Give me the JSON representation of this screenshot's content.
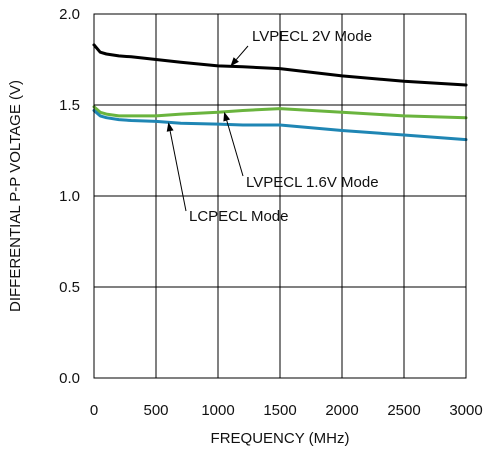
{
  "chart_data": {
    "type": "line",
    "xlabel": "FREQUENCY (MHz)",
    "ylabel": "DIFFERENTIAL P-P VOLTAGE (V)",
    "xlim": [
      0,
      3000
    ],
    "ylim": [
      0.0,
      2.0
    ],
    "x_ticks": [
      0,
      500,
      1000,
      1500,
      2000,
      2500,
      3000
    ],
    "x_tick_labels": [
      "0",
      "500",
      "1000",
      "1500",
      "2000",
      "2500",
      "3000"
    ],
    "y_ticks": [
      0.0,
      0.5,
      1.0,
      1.5,
      2.0
    ],
    "y_tick_labels": [
      "0.0",
      "0.5",
      "1.0",
      "1.5",
      "2.0"
    ],
    "grid": true,
    "series": [
      {
        "name": "LVPECL 2V Mode",
        "color": "#000000",
        "x": [
          0,
          50,
          100,
          200,
          300,
          500,
          700,
          1000,
          1200,
          1500,
          2000,
          2500,
          3000
        ],
        "y": [
          1.83,
          1.79,
          1.78,
          1.77,
          1.765,
          1.75,
          1.735,
          1.715,
          1.71,
          1.7,
          1.66,
          1.63,
          1.61
        ]
      },
      {
        "name": "LVPECL 1.6V Mode",
        "color": "#6ab43e",
        "x": [
          0,
          50,
          100,
          200,
          300,
          500,
          700,
          1000,
          1200,
          1500,
          2000,
          2500,
          3000
        ],
        "y": [
          1.49,
          1.46,
          1.45,
          1.44,
          1.44,
          1.44,
          1.45,
          1.46,
          1.47,
          1.48,
          1.46,
          1.44,
          1.43
        ]
      },
      {
        "name": "LCPECL Mode",
        "color": "#1f86b4",
        "x": [
          0,
          50,
          100,
          200,
          300,
          500,
          700,
          1000,
          1200,
          1500,
          2000,
          2500,
          3000
        ],
        "y": [
          1.47,
          1.44,
          1.43,
          1.42,
          1.415,
          1.41,
          1.4,
          1.395,
          1.39,
          1.39,
          1.36,
          1.335,
          1.31
        ]
      }
    ],
    "annotations": [
      {
        "text": "LVPECL 2V Mode",
        "series": 0,
        "arrow_to_x": 1100
      },
      {
        "text": "LVPECL 1.6V Mode",
        "series": 1,
        "arrow_to_x": 1050
      },
      {
        "text": "LCPECL Mode",
        "series": 2,
        "arrow_to_x": 600
      }
    ]
  }
}
